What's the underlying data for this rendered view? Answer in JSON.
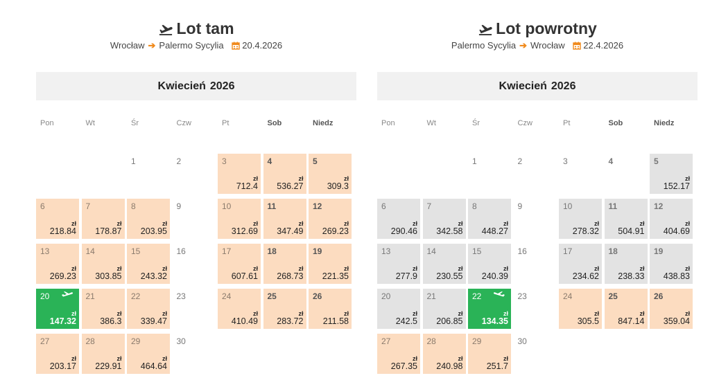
{
  "outbound": {
    "title": "Lot tam",
    "from": "Wrocław",
    "to": "Palermo Sycylia",
    "date": "20.4.2026",
    "month": "Kwiecień",
    "year": "2026",
    "currency": "zł",
    "weekdays": [
      "Pon",
      "Wt",
      "Śr",
      "Czw",
      "Pt",
      "Sob",
      "Niedz"
    ],
    "days": [
      {
        "d": "1"
      },
      {
        "d": "2"
      },
      {
        "d": "3",
        "price": "712.4",
        "state": "peach"
      },
      {
        "d": "4",
        "price": "536.27",
        "state": "peach"
      },
      {
        "d": "5",
        "price": "309.3",
        "state": "peach"
      },
      {
        "d": "6",
        "price": "218.84",
        "state": "peach"
      },
      {
        "d": "7",
        "price": "178.87",
        "state": "peach"
      },
      {
        "d": "8",
        "price": "203.95",
        "state": "peach"
      },
      {
        "d": "9"
      },
      {
        "d": "10",
        "price": "312.69",
        "state": "peach"
      },
      {
        "d": "11",
        "price": "347.49",
        "state": "peach"
      },
      {
        "d": "12",
        "price": "269.23",
        "state": "peach"
      },
      {
        "d": "13",
        "price": "269.23",
        "state": "peach"
      },
      {
        "d": "14",
        "price": "303.85",
        "state": "peach"
      },
      {
        "d": "15",
        "price": "243.32",
        "state": "peach"
      },
      {
        "d": "16"
      },
      {
        "d": "17",
        "price": "607.61",
        "state": "peach"
      },
      {
        "d": "18",
        "price": "268.73",
        "state": "peach"
      },
      {
        "d": "19",
        "price": "221.35",
        "state": "peach"
      },
      {
        "d": "20",
        "price": "147.32",
        "state": "green",
        "selected": true
      },
      {
        "d": "21",
        "price": "386.3",
        "state": "peach"
      },
      {
        "d": "22",
        "price": "339.47",
        "state": "peach"
      },
      {
        "d": "23"
      },
      {
        "d": "24",
        "price": "410.49",
        "state": "peach"
      },
      {
        "d": "25",
        "price": "283.72",
        "state": "peach"
      },
      {
        "d": "26",
        "price": "211.58",
        "state": "peach"
      },
      {
        "d": "27",
        "price": "203.17",
        "state": "peach"
      },
      {
        "d": "28",
        "price": "229.91",
        "state": "peach"
      },
      {
        "d": "29",
        "price": "464.64",
        "state": "peach"
      },
      {
        "d": "30"
      }
    ]
  },
  "return": {
    "title": "Lot powrotny",
    "from": "Palermo Sycylia",
    "to": "Wrocław",
    "date": "22.4.2026",
    "month": "Kwiecień",
    "year": "2026",
    "currency": "zł",
    "weekdays": [
      "Pon",
      "Wt",
      "Śr",
      "Czw",
      "Pt",
      "Sob",
      "Niedz"
    ],
    "days": [
      {
        "d": "1"
      },
      {
        "d": "2"
      },
      {
        "d": "3"
      },
      {
        "d": "4"
      },
      {
        "d": "5",
        "price": "152.17",
        "state": "gray"
      },
      {
        "d": "6",
        "price": "290.46",
        "state": "gray"
      },
      {
        "d": "7",
        "price": "342.58",
        "state": "gray"
      },
      {
        "d": "8",
        "price": "448.27",
        "state": "gray"
      },
      {
        "d": "9"
      },
      {
        "d": "10",
        "price": "278.32",
        "state": "gray"
      },
      {
        "d": "11",
        "price": "504.91",
        "state": "gray"
      },
      {
        "d": "12",
        "price": "404.69",
        "state": "gray"
      },
      {
        "d": "13",
        "price": "277.9",
        "state": "gray"
      },
      {
        "d": "14",
        "price": "230.55",
        "state": "gray"
      },
      {
        "d": "15",
        "price": "240.39",
        "state": "gray"
      },
      {
        "d": "16"
      },
      {
        "d": "17",
        "price": "234.62",
        "state": "gray"
      },
      {
        "d": "18",
        "price": "238.33",
        "state": "gray"
      },
      {
        "d": "19",
        "price": "438.83",
        "state": "gray"
      },
      {
        "d": "20",
        "price": "242.5",
        "state": "gray"
      },
      {
        "d": "21",
        "price": "206.85",
        "state": "gray"
      },
      {
        "d": "22",
        "price": "134.35",
        "state": "green",
        "selected": true
      },
      {
        "d": "23"
      },
      {
        "d": "24",
        "price": "305.5",
        "state": "peach"
      },
      {
        "d": "25",
        "price": "847.14",
        "state": "peach"
      },
      {
        "d": "26",
        "price": "359.04",
        "state": "peach"
      },
      {
        "d": "27",
        "price": "267.35",
        "state": "peach"
      },
      {
        "d": "28",
        "price": "240.98",
        "state": "peach"
      },
      {
        "d": "29",
        "price": "251.7",
        "state": "peach"
      },
      {
        "d": "30"
      }
    ]
  },
  "colors": {
    "accent": "#f08a1c",
    "selected": "#2ab357",
    "available_out": "#fcdcc0",
    "available_ret": "#e3e3e3",
    "month_bar": "#f1f1f1"
  }
}
